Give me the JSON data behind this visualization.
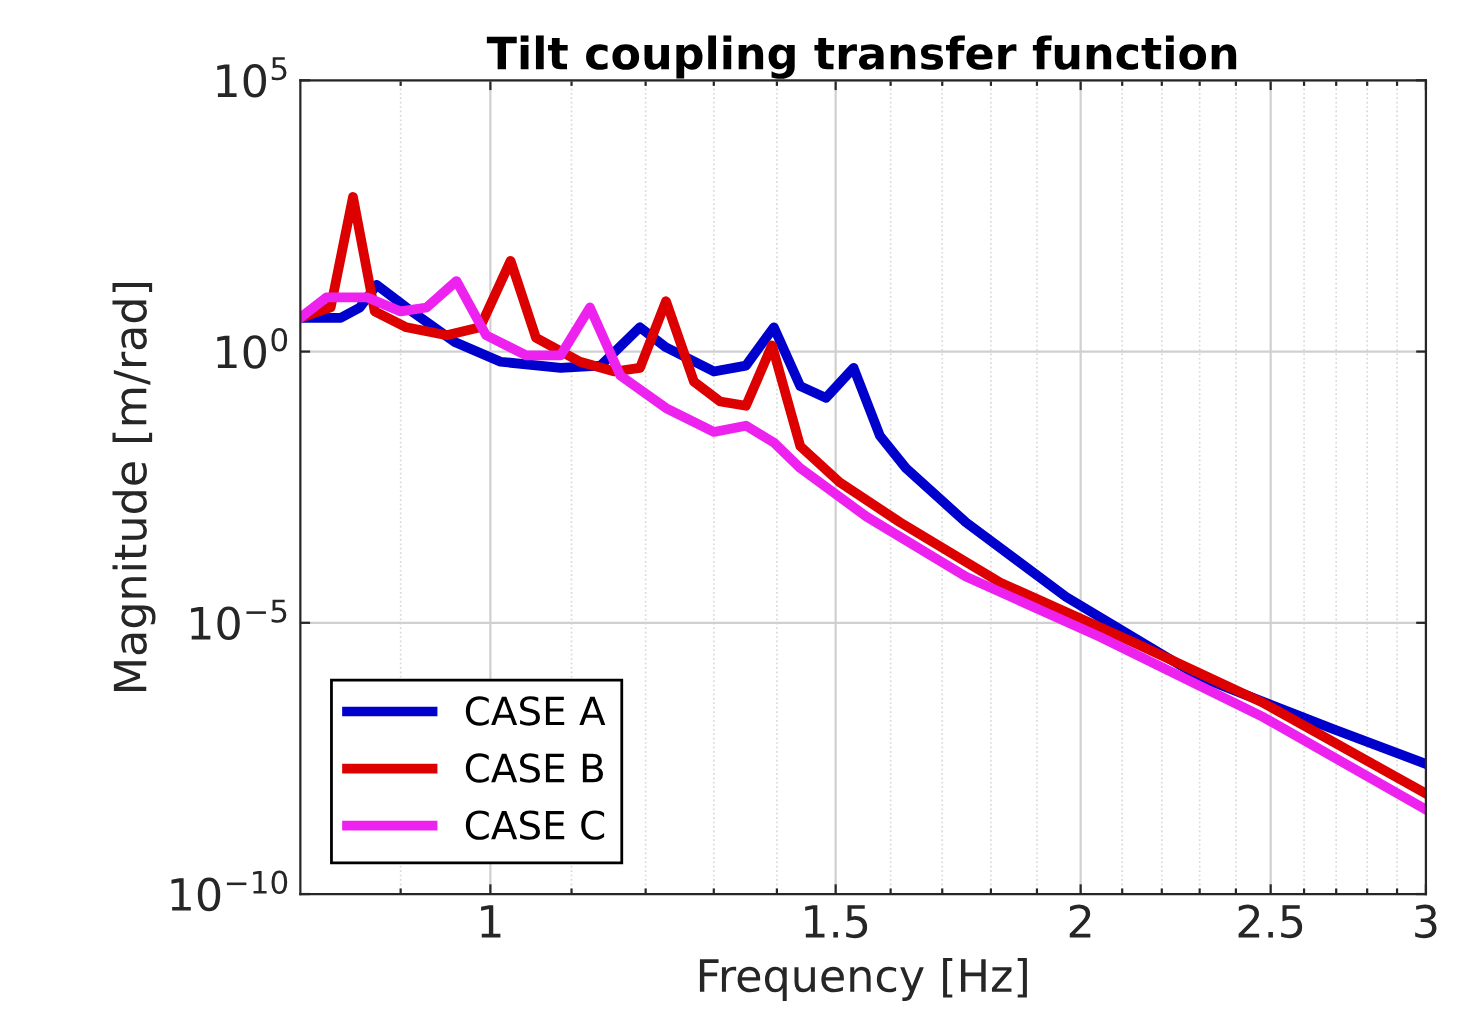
{
  "chart_data": {
    "type": "line",
    "title": "Tilt coupling transfer function",
    "xlabel": "Frequency [Hz]",
    "ylabel": "Magnitude [m/rad]",
    "log": "xy",
    "grid": true,
    "legend": "bottom left",
    "line_style": "solid",
    "marker": "none",
    "xlim": [
      0.8,
      3
    ],
    "xticks": [
      {
        "value": 0.9,
        "label": null
      },
      1,
      {
        "value": 1.1,
        "label": null
      },
      {
        "value": 1.2,
        "label": null
      },
      {
        "value": 1.3,
        "label": null
      },
      {
        "value": 1.4,
        "label": null
      },
      1.5,
      {
        "value": 1.6,
        "label": null
      },
      {
        "value": 1.7,
        "label": null
      },
      {
        "value": 1.8,
        "label": null
      },
      {
        "value": 1.9,
        "label": null
      },
      2,
      {
        "value": 2.1,
        "label": null
      },
      {
        "value": 2.2,
        "label": null
      },
      {
        "value": 2.3,
        "label": null
      },
      {
        "value": 2.4,
        "label": null
      },
      2.5,
      {
        "value": 2.6,
        "label": null
      },
      {
        "value": 2.7,
        "label": null
      },
      {
        "value": 2.8,
        "label": null
      },
      {
        "value": 2.9,
        "label": null
      },
      3
    ],
    "ylim": [
      1e-10,
      100000.0
    ],
    "yticks": [
      {
        "value": 1e-10,
        "label": "10$^{−10}$"
      },
      {
        "value": 1e-05,
        "label": "10$^{−5}$"
      },
      {
        "value": 1,
        "label": "10$^{0}$"
      },
      {
        "value": 100000.0,
        "label": "10$^{5}$"
      }
    ],
    "series": [
      {
        "name": "CASE A",
        "color": "#0000cc",
        "x": [
          0.8,
          0.839,
          0.858,
          0.875,
          0.906,
          0.959,
          1.012,
          1.086,
          1.138,
          1.192,
          1.229,
          1.3,
          1.35,
          1.395,
          1.439,
          1.483,
          1.532,
          1.58,
          1.629,
          1.748,
          1.966,
          2.301,
          2.69,
          3.0
        ],
        "values": [
          4.2,
          4.2,
          6.5,
          17,
          6.5,
          1.5,
          0.65,
          0.5,
          0.55,
          2.8,
          1.2,
          0.43,
          0.55,
          2.8,
          0.23,
          0.14,
          0.5,
          0.028,
          0.0071,
          0.00071,
          3e-05,
          1e-06,
          1.1e-07,
          2.5e-08
        ]
      },
      {
        "name": "CASE B",
        "color": "#dd0000",
        "x": [
          0.8,
          0.829,
          0.851,
          0.873,
          0.906,
          0.95,
          0.988,
          1.024,
          1.055,
          1.111,
          1.157,
          1.192,
          1.229,
          1.27,
          1.31,
          1.35,
          1.392,
          1.439,
          1.507,
          1.618,
          1.82,
          2.13,
          2.48,
          3.0
        ],
        "values": [
          4.2,
          6.5,
          710,
          5.5,
          2.8,
          2.0,
          2.8,
          47,
          1.8,
          0.65,
          0.43,
          0.5,
          8.5,
          0.28,
          0.12,
          0.1,
          1.3,
          0.018,
          0.0039,
          0.00071,
          5.5e-05,
          4.3e-06,
          3.3e-07,
          7.1e-09
        ]
      },
      {
        "name": "CASE C",
        "color": "#ee22ee",
        "x": [
          0.8,
          0.825,
          0.865,
          0.9,
          0.928,
          0.961,
          0.995,
          1.043,
          1.086,
          1.124,
          1.165,
          1.229,
          1.3,
          1.35,
          1.395,
          1.439,
          1.555,
          1.748,
          2.046,
          2.48,
          3.0
        ],
        "values": [
          4.2,
          10,
          10,
          5.5,
          6.5,
          20,
          2.0,
          0.85,
          0.85,
          6.5,
          0.36,
          0.091,
          0.033,
          0.043,
          0.021,
          0.0071,
          0.00091,
          7.1e-05,
          5.5e-06,
          1.8e-07,
          3.6e-09
        ]
      }
    ]
  }
}
